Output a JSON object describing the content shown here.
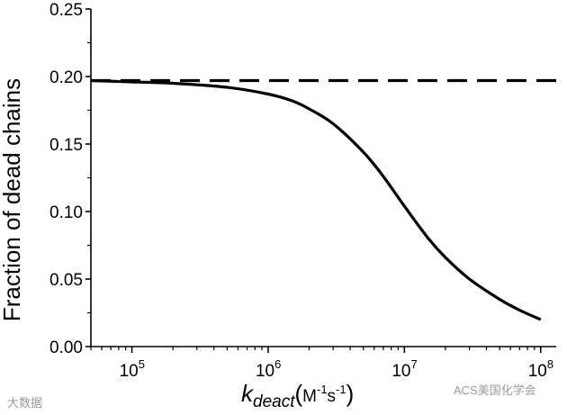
{
  "chart_data": {
    "type": "line",
    "xscale": "log",
    "xlim": [
      50000,
      130000000
    ],
    "ylim": [
      0,
      0.25
    ],
    "x_ticks": [
      {
        "value": 100000,
        "base": "10",
        "exp": "5"
      },
      {
        "value": 1000000,
        "base": "10",
        "exp": "6"
      },
      {
        "value": 10000000,
        "base": "10",
        "exp": "7"
      },
      {
        "value": 100000000,
        "base": "10",
        "exp": "8"
      }
    ],
    "y_ticks": [
      {
        "value": 0.0,
        "label": "0.00"
      },
      {
        "value": 0.05,
        "label": "0.05"
      },
      {
        "value": 0.1,
        "label": "0.10"
      },
      {
        "value": 0.15,
        "label": "0.15"
      },
      {
        "value": 0.2,
        "label": "0.20"
      },
      {
        "value": 0.25,
        "label": "0.25"
      }
    ],
    "ylabel": "Fraction of dead chains",
    "xlabel": {
      "symbol": "k",
      "sub": "deact",
      "unit_open": "(",
      "unit_m": "M",
      "unit_m_exp": "-1",
      "unit_s": "s",
      "unit_s_exp": "-1",
      "unit_close": ")"
    },
    "series": [
      {
        "style": "solid",
        "x": [
          50000,
          100000,
          200000,
          500000,
          1000000,
          1500000,
          2000000,
          3000000,
          5000000,
          7000000,
          10000000,
          15000000,
          20000000,
          30000000,
          50000000,
          70000000,
          100000000
        ],
        "y": [
          0.197,
          0.196,
          0.195,
          0.192,
          0.187,
          0.182,
          0.176,
          0.165,
          0.144,
          0.126,
          0.104,
          0.08,
          0.066,
          0.05,
          0.035,
          0.027,
          0.02
        ]
      },
      {
        "style": "dashed",
        "x": [
          50000,
          130000000
        ],
        "y": [
          0.197,
          0.197
        ]
      }
    ]
  },
  "watermarks": {
    "left": "大数据",
    "right": "ACS美国化学会"
  },
  "colors": {
    "line": "#000000",
    "watermark": "#9a9a9a"
  }
}
